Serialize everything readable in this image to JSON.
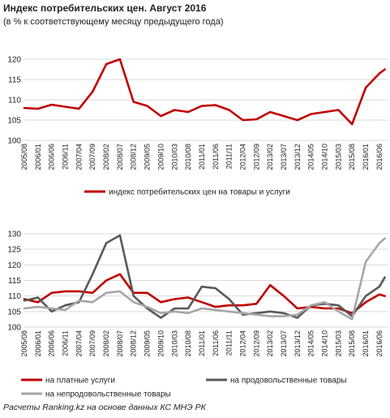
{
  "header": {
    "title": "Индекс потребительских  цен. Август 2016",
    "subtitle": "(в % к соответствующему  месяцу предыдущего года)"
  },
  "footer": {
    "source": "Расчеты Ranking.kz на основе данных  КС МНЭ РК"
  },
  "x_labels": [
    "2005/08",
    "2006/01",
    "2006/06",
    "2006/11",
    "2007/04",
    "2007/09",
    "2008/02",
    "2008/07",
    "2008/12",
    "2009/05",
    "2009/10",
    "2010/03",
    "2010/08",
    "2011/01",
    "2011/06",
    "2011/11",
    "2012/04",
    "2012/09",
    "2013/02",
    "2013/07",
    "2013/12",
    "2014/05",
    "2014/10",
    "2015/03",
    "2015/08",
    "2016/01",
    "2016/06"
  ],
  "colors": {
    "total": "#c00000",
    "services": "#c00000",
    "food": "#595959",
    "nonfood": "#a6a6a6",
    "grid": "#d9d9d9"
  },
  "chart_data": [
    {
      "type": "line",
      "title": "",
      "ylim": [
        100,
        120
      ],
      "yticks": [
        100,
        105,
        110,
        115,
        120
      ],
      "series": [
        {
          "name": "индекс потребительских цен на товары и услуги",
          "x": [
            "2005/08",
            "2006/01",
            "2006/06",
            "2006/11",
            "2007/04",
            "2007/09",
            "2008/02",
            "2008/07",
            "2008/12",
            "2009/05",
            "2009/10",
            "2010/03",
            "2010/08",
            "2011/01",
            "2011/06",
            "2011/11",
            "2012/04",
            "2012/09",
            "2013/02",
            "2013/07",
            "2013/12",
            "2014/05",
            "2014/10",
            "2015/03",
            "2015/08",
            "2016/01",
            "2016/06",
            "2016/08"
          ],
          "values": [
            108.0,
            107.8,
            108.8,
            108.3,
            107.8,
            112.0,
            118.8,
            120.0,
            109.5,
            108.5,
            106.0,
            107.5,
            107.0,
            108.5,
            108.7,
            107.5,
            105.0,
            105.2,
            107.0,
            106.0,
            105.0,
            106.5,
            107.0,
            107.5,
            104.0,
            113.0,
            116.5,
            117.5
          ]
        }
      ]
    },
    {
      "type": "line",
      "title": "",
      "ylim": [
        100,
        130
      ],
      "yticks": [
        100,
        105,
        110,
        115,
        120,
        125,
        130
      ],
      "series": [
        {
          "name": "на платные услуги",
          "x": [
            "2005/08",
            "2006/01",
            "2006/06",
            "2006/11",
            "2007/04",
            "2007/09",
            "2008/02",
            "2008/07",
            "2008/12",
            "2009/05",
            "2009/10",
            "2010/03",
            "2010/08",
            "2011/01",
            "2011/06",
            "2011/11",
            "2012/04",
            "2012/09",
            "2013/02",
            "2013/07",
            "2013/12",
            "2014/05",
            "2014/10",
            "2015/03",
            "2015/08",
            "2016/01",
            "2016/06",
            "2016/08"
          ],
          "values": [
            109,
            108,
            111,
            111.5,
            111.5,
            111,
            115,
            117,
            111,
            111,
            108,
            109,
            109.5,
            108,
            106.5,
            107,
            107,
            107.5,
            113.5,
            110,
            106,
            106.5,
            106,
            106,
            104.5,
            108,
            110.5,
            110
          ]
        },
        {
          "name": "на продовольственные товары",
          "x": [
            "2005/08",
            "2006/01",
            "2006/06",
            "2006/11",
            "2007/04",
            "2007/09",
            "2008/02",
            "2008/07",
            "2008/12",
            "2009/05",
            "2009/10",
            "2010/03",
            "2010/08",
            "2011/01",
            "2011/06",
            "2011/11",
            "2012/04",
            "2012/09",
            "2013/02",
            "2013/07",
            "2013/12",
            "2014/05",
            "2014/10",
            "2015/03",
            "2015/08",
            "2016/01",
            "2016/06",
            "2016/08"
          ],
          "values": [
            108.5,
            109.5,
            105,
            107,
            108,
            117,
            127,
            129.5,
            110,
            106,
            103,
            106,
            106,
            113,
            112.5,
            109,
            104,
            104.5,
            105,
            104.5,
            103,
            107,
            107.5,
            107,
            103.5,
            110,
            113,
            116
          ]
        },
        {
          "name": "на непродовольственные товары",
          "x": [
            "2005/08",
            "2006/01",
            "2006/06",
            "2006/11",
            "2007/04",
            "2007/09",
            "2008/02",
            "2008/07",
            "2008/12",
            "2009/05",
            "2009/10",
            "2010/03",
            "2010/08",
            "2011/01",
            "2011/06",
            "2011/11",
            "2012/04",
            "2012/09",
            "2013/02",
            "2013/07",
            "2013/12",
            "2014/05",
            "2014/10",
            "2015/03",
            "2015/08",
            "2016/01",
            "2016/06",
            "2016/08"
          ],
          "values": [
            106,
            106.5,
            106,
            105.5,
            108.5,
            108,
            111,
            111.5,
            108,
            106.5,
            104.5,
            105,
            104.5,
            106,
            105.5,
            105,
            104.5,
            104,
            103.5,
            103.5,
            104,
            107,
            108,
            105,
            102.5,
            121,
            127,
            128.5
          ]
        }
      ]
    }
  ]
}
